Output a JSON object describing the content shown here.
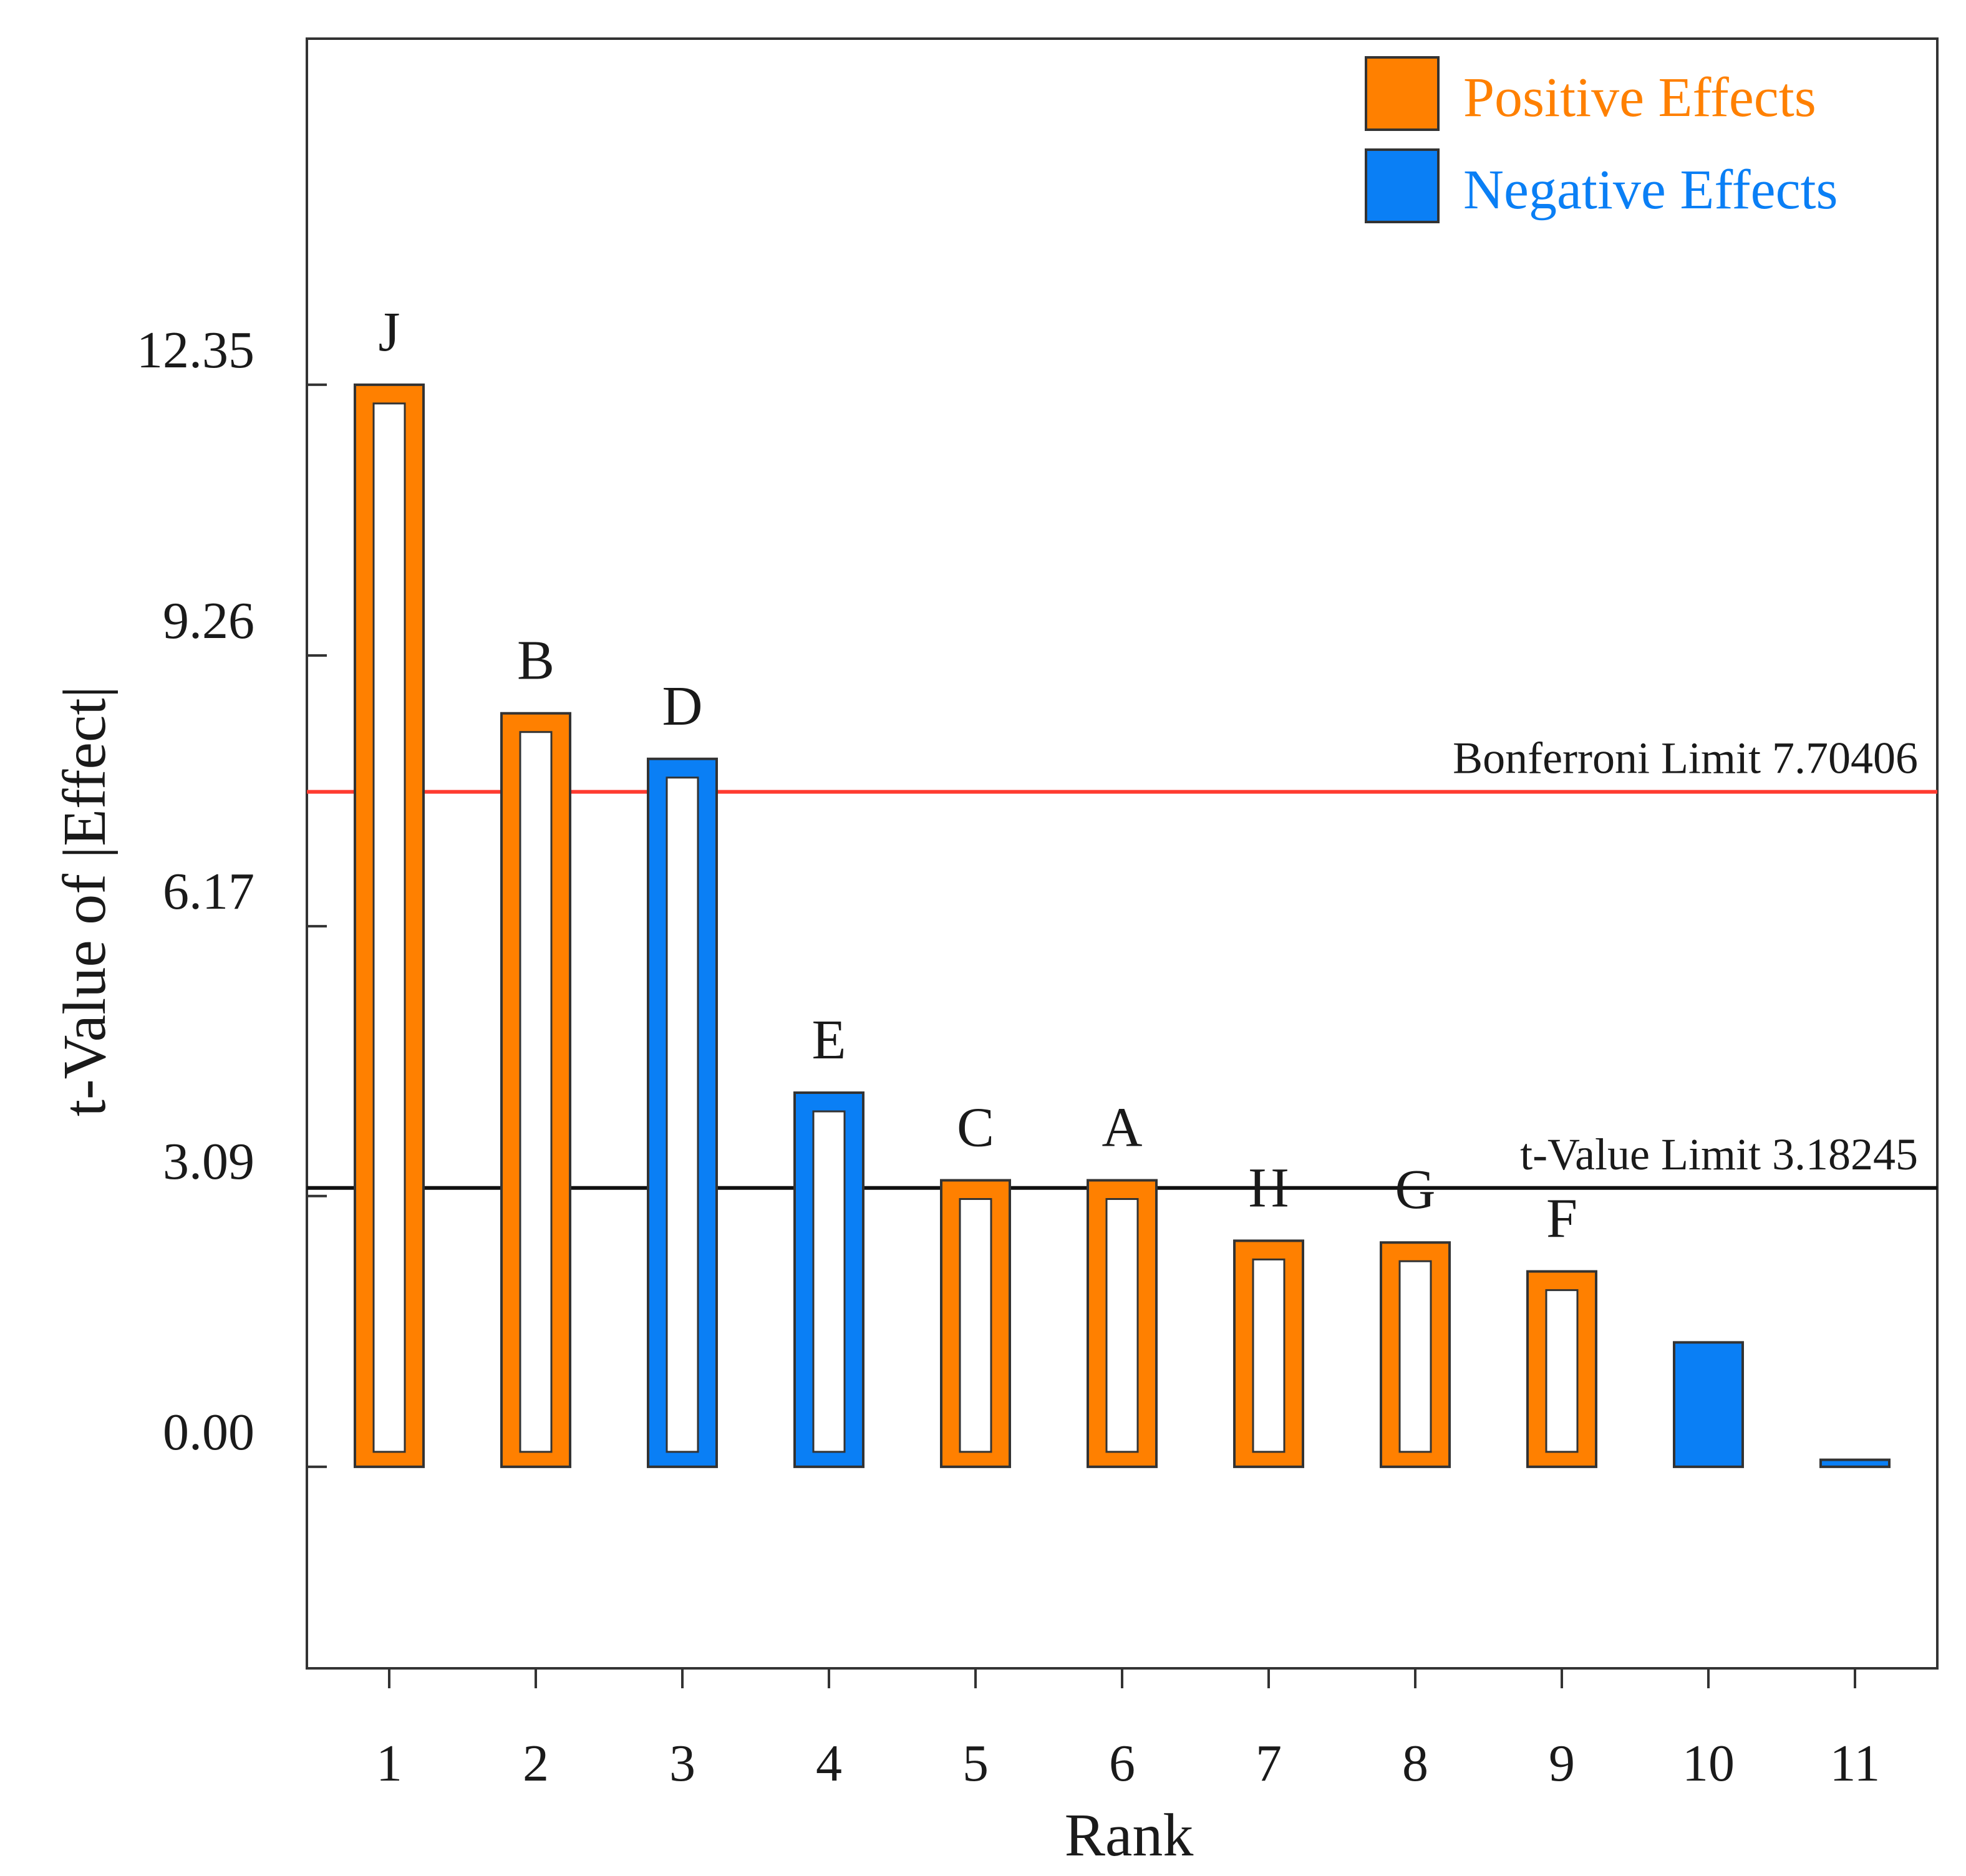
{
  "chart_data": {
    "type": "bar",
    "title": "",
    "xlabel": "Rank",
    "ylabel": "t-Value of |Effect|",
    "ylim": [
      -2.3,
      16.3
    ],
    "yticks": [
      "0.00",
      "3.09",
      "6.17",
      "9.26",
      "12.35"
    ],
    "ytick_values": [
      0,
      3.09,
      6.17,
      9.26,
      12.35
    ],
    "categories": [
      "1",
      "2",
      "3",
      "4",
      "5",
      "6",
      "7",
      "8",
      "9",
      "10",
      "11"
    ],
    "values": [
      12.35,
      8.6,
      8.08,
      4.27,
      3.27,
      3.27,
      2.58,
      2.56,
      2.23,
      1.42,
      0.08
    ],
    "effects": [
      "positive",
      "positive",
      "negative",
      "negative",
      "positive",
      "positive",
      "positive",
      "positive",
      "positive",
      "negative",
      "negative"
    ],
    "filled": [
      false,
      false,
      false,
      false,
      false,
      false,
      false,
      false,
      false,
      true,
      true
    ],
    "bar_labels": [
      "J",
      "B",
      "D",
      "E",
      "C",
      "A",
      "H",
      "G",
      "F",
      "",
      ""
    ],
    "reference_lines": [
      {
        "name": "Bonferroni Limit",
        "value": 7.70406,
        "label": "Bonferroni Limit 7.70406",
        "color": "#ff3b30"
      },
      {
        "name": "t-Value Limit",
        "value": 3.18245,
        "label": "t-Value Limit 3.18245",
        "color": "#111111"
      }
    ],
    "legend": [
      {
        "label": "Positive Effects",
        "color": "#ff8000"
      },
      {
        "label": "Negative Effects",
        "color": "#0a7ff5"
      }
    ],
    "legend_position": "top-right",
    "grid": false
  }
}
